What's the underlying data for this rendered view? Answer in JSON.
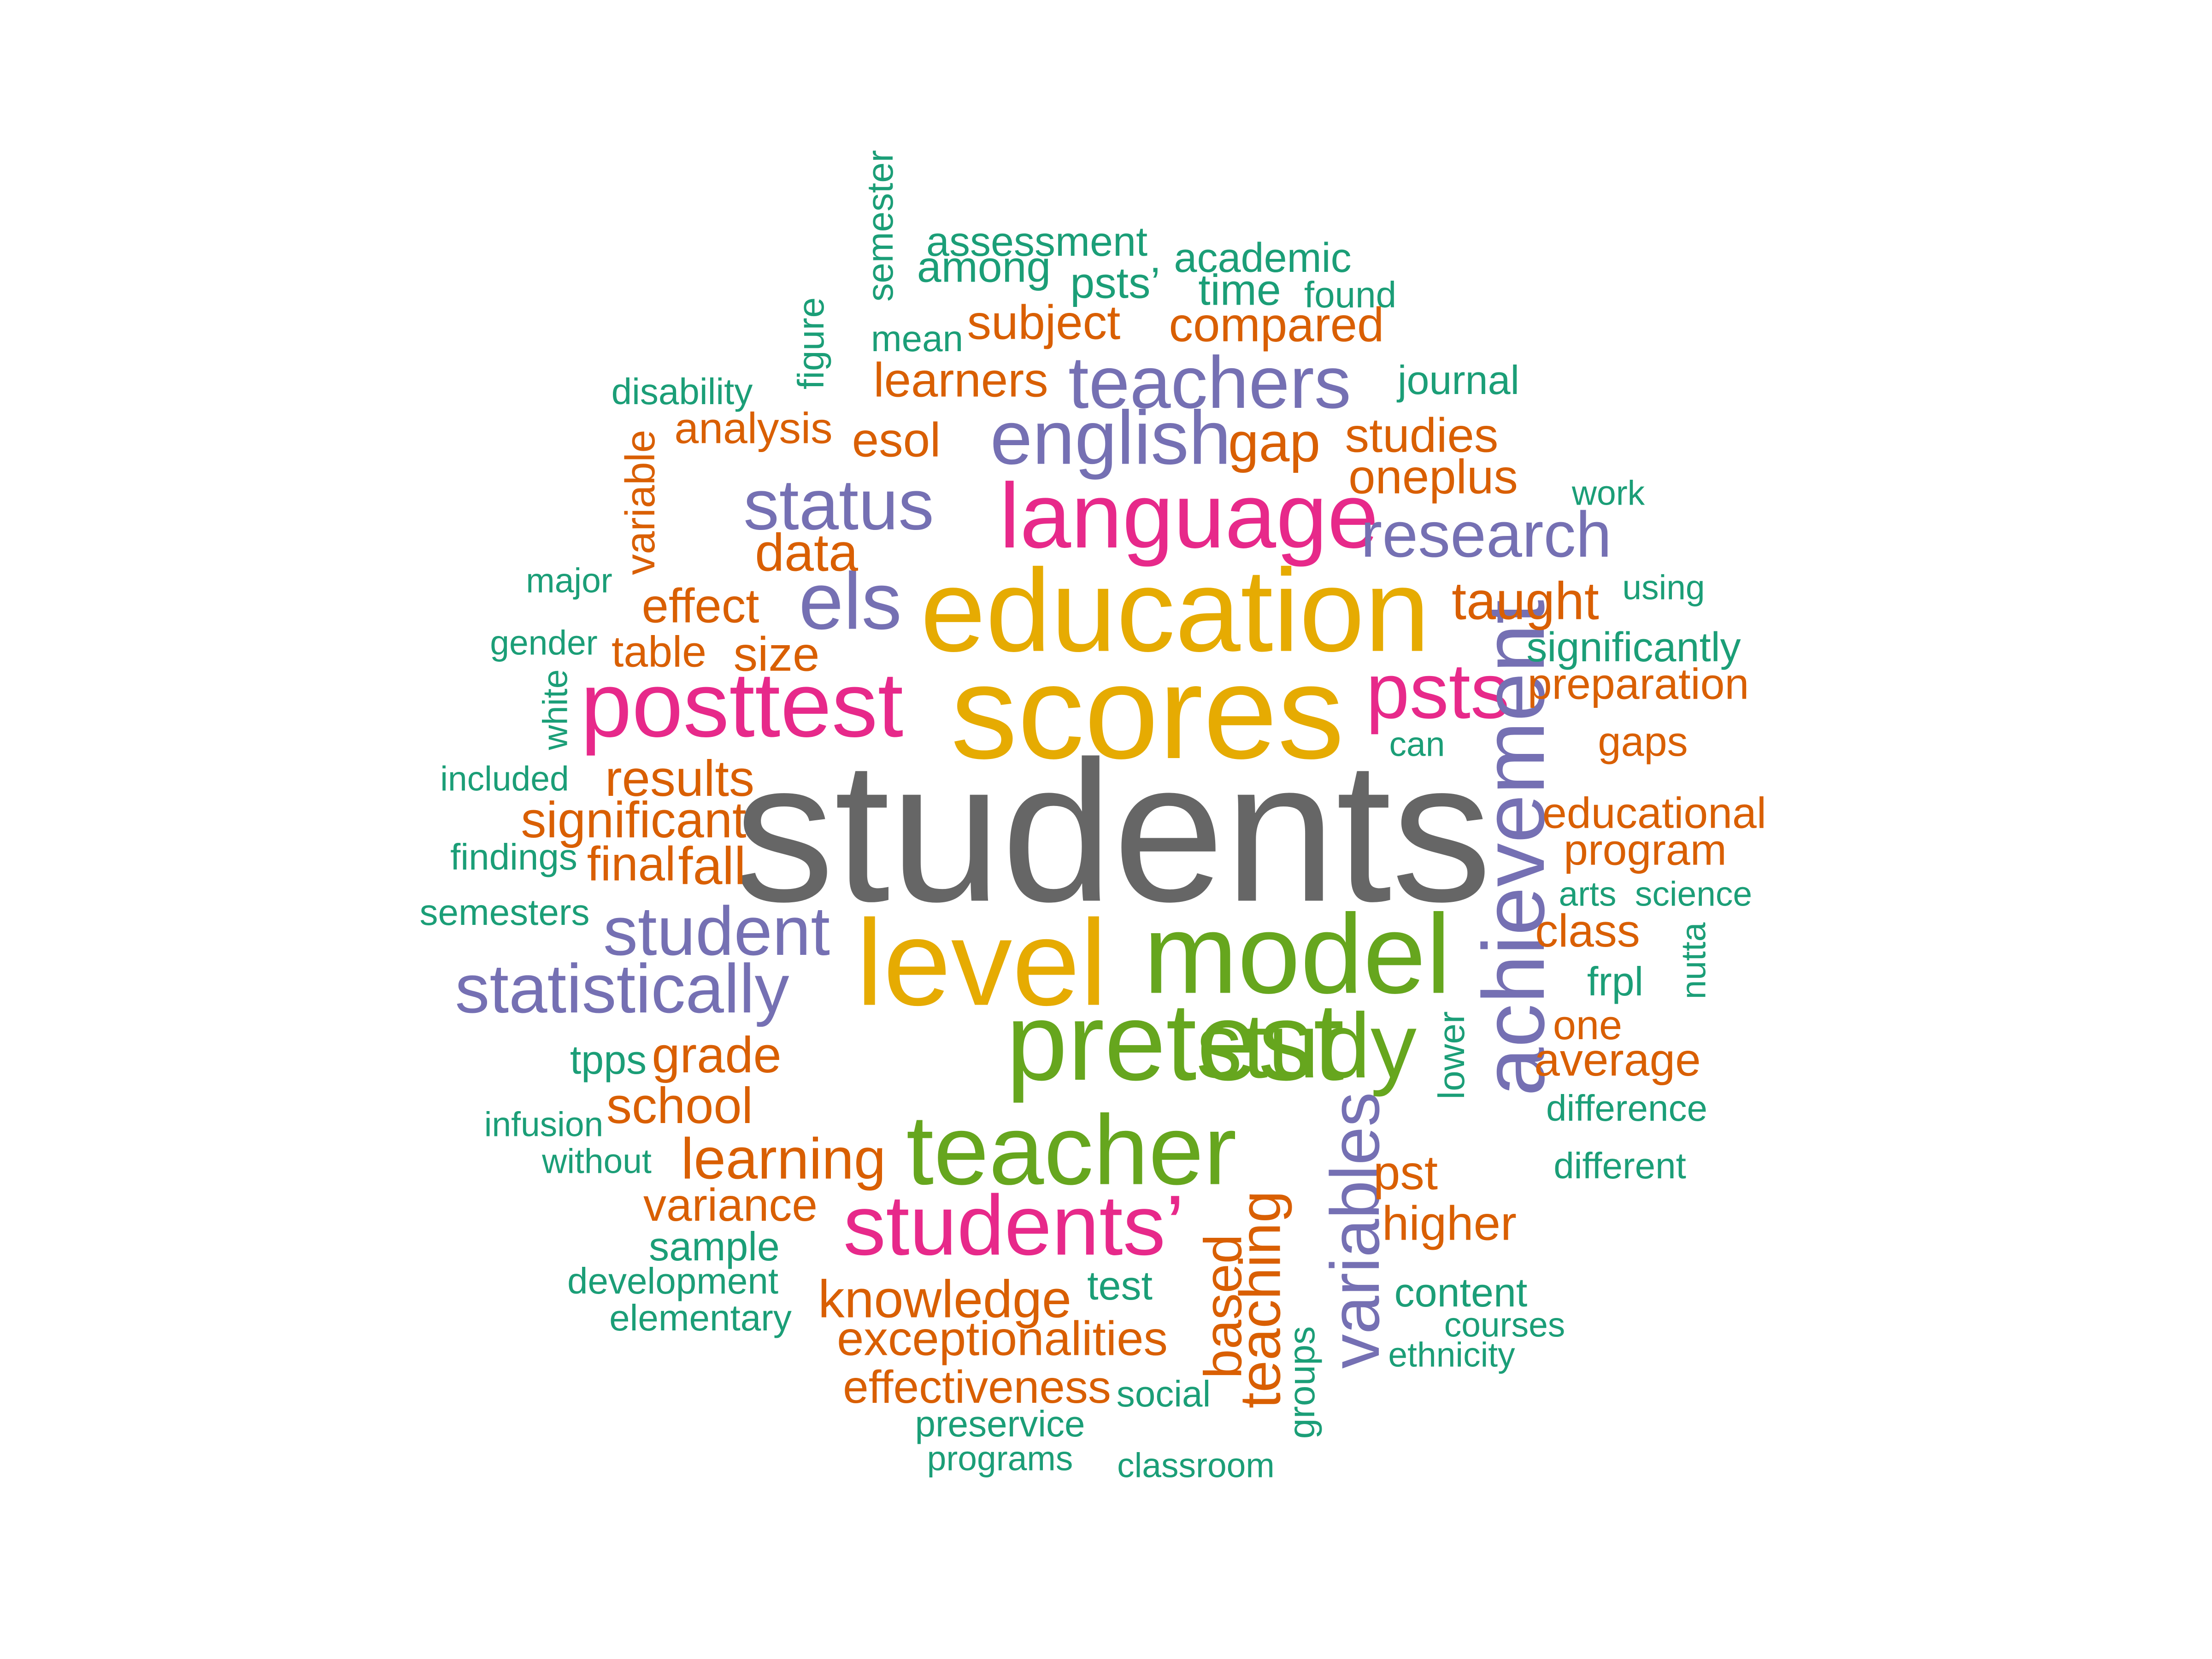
{
  "colors": {
    "gray": "#666666",
    "gold": "#E6AB02",
    "green": "#66A61E",
    "magenta": "#E7298A",
    "purple": "#7570B3",
    "orange": "#D95F02",
    "teal": "#1B9E77"
  },
  "words": [
    {
      "text": "students",
      "color": "gray",
      "weight": 1.0
    },
    {
      "text": "education",
      "color": "gold",
      "weight": 0.62
    },
    {
      "text": "scores",
      "color": "gold",
      "weight": 0.7
    },
    {
      "text": "level",
      "color": "gold",
      "weight": 0.62
    },
    {
      "text": "model",
      "color": "green",
      "weight": 0.6
    },
    {
      "text": "pretest",
      "color": "green",
      "weight": 0.62
    },
    {
      "text": "study",
      "color": "green",
      "weight": 0.5
    },
    {
      "text": "teacher",
      "color": "green",
      "weight": 0.55
    },
    {
      "text": "language",
      "color": "magenta",
      "weight": 0.5
    },
    {
      "text": "posttest",
      "color": "magenta",
      "weight": 0.5
    },
    {
      "text": "psts",
      "color": "magenta",
      "weight": 0.45
    },
    {
      "text": "students’",
      "color": "magenta",
      "weight": 0.45
    },
    {
      "text": "teachers",
      "color": "purple",
      "weight": 0.4
    },
    {
      "text": "english",
      "color": "purple",
      "weight": 0.42
    },
    {
      "text": "status",
      "color": "purple",
      "weight": 0.38
    },
    {
      "text": "research",
      "color": "purple",
      "weight": 0.36
    },
    {
      "text": "els",
      "color": "purple",
      "weight": 0.42
    },
    {
      "text": "achievement",
      "color": "purple",
      "weight": 0.46
    },
    {
      "text": "student",
      "color": "purple",
      "weight": 0.38
    },
    {
      "text": "statistically",
      "color": "purple",
      "weight": 0.38
    },
    {
      "text": "variables",
      "color": "purple",
      "weight": 0.38
    },
    {
      "text": "subject",
      "color": "orange",
      "weight": 0.27
    },
    {
      "text": "compared",
      "color": "orange",
      "weight": 0.27
    },
    {
      "text": "learners",
      "color": "orange",
      "weight": 0.27
    },
    {
      "text": "analysis",
      "color": "orange",
      "weight": 0.25
    },
    {
      "text": "esol",
      "color": "orange",
      "weight": 0.27
    },
    {
      "text": "gap",
      "color": "orange",
      "weight": 0.3
    },
    {
      "text": "studies",
      "color": "orange",
      "weight": 0.27
    },
    {
      "text": "oneplus",
      "color": "orange",
      "weight": 0.27
    },
    {
      "text": "data",
      "color": "orange",
      "weight": 0.3
    },
    {
      "text": "effect",
      "color": "orange",
      "weight": 0.27
    },
    {
      "text": "taught",
      "color": "orange",
      "weight": 0.3
    },
    {
      "text": "table",
      "color": "orange",
      "weight": 0.25
    },
    {
      "text": "size",
      "color": "orange",
      "weight": 0.27
    },
    {
      "text": "preparation",
      "color": "orange",
      "weight": 0.25
    },
    {
      "text": "gaps",
      "color": "orange",
      "weight": 0.23
    },
    {
      "text": "results",
      "color": "orange",
      "weight": 0.28
    },
    {
      "text": "significant",
      "color": "orange",
      "weight": 0.28
    },
    {
      "text": "educational",
      "color": "orange",
      "weight": 0.25
    },
    {
      "text": "program",
      "color": "orange",
      "weight": 0.25
    },
    {
      "text": "final",
      "color": "orange",
      "weight": 0.27
    },
    {
      "text": "fall",
      "color": "orange",
      "weight": 0.3
    },
    {
      "text": "class",
      "color": "orange",
      "weight": 0.26
    },
    {
      "text": "one",
      "color": "orange",
      "weight": 0.23
    },
    {
      "text": "average",
      "color": "orange",
      "weight": 0.26
    },
    {
      "text": "grade",
      "color": "orange",
      "weight": 0.28
    },
    {
      "text": "school",
      "color": "orange",
      "weight": 0.28
    },
    {
      "text": "learning",
      "color": "orange",
      "weight": 0.32
    },
    {
      "text": "pst",
      "color": "orange",
      "weight": 0.27
    },
    {
      "text": "variance",
      "color": "orange",
      "weight": 0.26
    },
    {
      "text": "higher",
      "color": "orange",
      "weight": 0.27
    },
    {
      "text": "knowledge",
      "color": "orange",
      "weight": 0.3
    },
    {
      "text": "exceptionalities",
      "color": "orange",
      "weight": 0.27
    },
    {
      "text": "effectiveness",
      "color": "orange",
      "weight": 0.26
    },
    {
      "text": "based",
      "color": "orange",
      "weight": 0.3
    },
    {
      "text": "teaching",
      "color": "orange",
      "weight": 0.32
    },
    {
      "text": "variable",
      "color": "orange",
      "weight": 0.23
    },
    {
      "text": "semester",
      "color": "teal",
      "weight": 0.2
    },
    {
      "text": "assessment",
      "color": "teal",
      "weight": 0.23
    },
    {
      "text": "academic",
      "color": "teal",
      "weight": 0.23
    },
    {
      "text": "among",
      "color": "teal",
      "weight": 0.25
    },
    {
      "text": "psts’",
      "color": "teal",
      "weight": 0.25
    },
    {
      "text": "time",
      "color": "teal",
      "weight": 0.25
    },
    {
      "text": "found",
      "color": "teal",
      "weight": 0.2
    },
    {
      "text": "mean",
      "color": "teal",
      "weight": 0.2
    },
    {
      "text": "figure",
      "color": "teal",
      "weight": 0.2
    },
    {
      "text": "disability",
      "color": "teal",
      "weight": 0.2
    },
    {
      "text": "journal",
      "color": "teal",
      "weight": 0.22
    },
    {
      "text": "work",
      "color": "teal",
      "weight": 0.19
    },
    {
      "text": "major",
      "color": "teal",
      "weight": 0.2
    },
    {
      "text": "using",
      "color": "teal",
      "weight": 0.19
    },
    {
      "text": "gender",
      "color": "teal",
      "weight": 0.19
    },
    {
      "text": "significantly",
      "color": "teal",
      "weight": 0.23
    },
    {
      "text": "white",
      "color": "teal",
      "weight": 0.19
    },
    {
      "text": "can",
      "color": "teal",
      "weight": 0.19
    },
    {
      "text": "included",
      "color": "teal",
      "weight": 0.19
    },
    {
      "text": "findings",
      "color": "teal",
      "weight": 0.2
    },
    {
      "text": "semesters",
      "color": "teal",
      "weight": 0.2
    },
    {
      "text": "arts",
      "color": "teal",
      "weight": 0.19
    },
    {
      "text": "science",
      "color": "teal",
      "weight": 0.19
    },
    {
      "text": "nutta",
      "color": "teal",
      "weight": 0.19
    },
    {
      "text": "frpl",
      "color": "teal",
      "weight": 0.22
    },
    {
      "text": "tpps",
      "color": "teal",
      "weight": 0.22
    },
    {
      "text": "lower",
      "color": "teal",
      "weight": 0.2
    },
    {
      "text": "infusion",
      "color": "teal",
      "weight": 0.19
    },
    {
      "text": "difference",
      "color": "teal",
      "weight": 0.2
    },
    {
      "text": "without",
      "color": "teal",
      "weight": 0.19
    },
    {
      "text": "different",
      "color": "teal",
      "weight": 0.2
    },
    {
      "text": "sample",
      "color": "teal",
      "weight": 0.23
    },
    {
      "text": "development",
      "color": "teal",
      "weight": 0.2
    },
    {
      "text": "elementary",
      "color": "teal",
      "weight": 0.2
    },
    {
      "text": "test",
      "color": "teal",
      "weight": 0.23
    },
    {
      "text": "content",
      "color": "teal",
      "weight": 0.23
    },
    {
      "text": "courses",
      "color": "teal",
      "weight": 0.19
    },
    {
      "text": "ethnicity",
      "color": "teal",
      "weight": 0.19
    },
    {
      "text": "social",
      "color": "teal",
      "weight": 0.2
    },
    {
      "text": "groups",
      "color": "teal",
      "weight": 0.2
    },
    {
      "text": "preservice",
      "color": "teal",
      "weight": 0.2
    },
    {
      "text": "programs",
      "color": "teal",
      "weight": 0.19
    },
    {
      "text": "classroom",
      "color": "teal",
      "weight": 0.19
    }
  ]
}
